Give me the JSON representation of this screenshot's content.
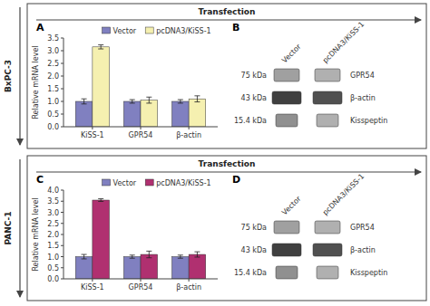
{
  "chart_data": [
    {
      "type": "bar",
      "title": "A",
      "subtitle": "BxPC-3",
      "annotations": [
        "Transfection"
      ],
      "categories": [
        "KiSS-1",
        "GPR54",
        "β-actin"
      ],
      "series": [
        {
          "name": "Vector",
          "color": "#8080c0",
          "values": [
            1.0,
            1.0,
            1.0
          ],
          "errors": [
            0.1,
            0.07,
            0.07
          ]
        },
        {
          "name": "pcDNA3/KiSS-1",
          "color": "#f5f0b0",
          "values": [
            3.15,
            1.05,
            1.1
          ],
          "errors": [
            0.08,
            0.12,
            0.12
          ]
        }
      ],
      "ylabel": "Relative mRNA level",
      "ylim": [
        0,
        3.5
      ],
      "yticks": [
        {
          "value": 0,
          "label": "0.0"
        },
        0.5,
        {
          "value": 1.0,
          "label": "1.0"
        },
        1.5,
        {
          "value": 2.0,
          "label": "2.0"
        },
        2.5,
        {
          "value": 3.0,
          "label": "3.0"
        },
        3.5
      ],
      "legend": "upper right",
      "grid": false
    },
    {
      "type": "blot",
      "title": "B",
      "categories": [
        "Vector",
        "pcDNA3/KiSS-1"
      ],
      "rows": [
        "GPR54",
        "β-actin",
        "Kisspeptin"
      ],
      "annotations": [
        "75 kDa",
        "43 kDa",
        "15.4 kDa"
      ]
    },
    {
      "type": "bar",
      "title": "C",
      "subtitle": "PANC-1",
      "annotations": [
        "Transfection"
      ],
      "categories": [
        "KiSS-1",
        "GPR54",
        "β-actin"
      ],
      "series": [
        {
          "name": "Vector",
          "color": "#8080c0",
          "values": [
            1.0,
            1.0,
            1.0
          ],
          "errors": [
            0.1,
            0.07,
            0.07
          ]
        },
        {
          "name": "pcDNA3/KiSS-1",
          "color": "#b03070",
          "values": [
            3.55,
            1.1,
            1.1
          ],
          "errors": [
            0.06,
            0.15,
            0.12
          ]
        }
      ],
      "ylabel": "Relative mRNA level",
      "ylim": [
        0,
        4.0
      ],
      "yticks": [
        {
          "value": 0,
          "label": "0.0"
        },
        0.5,
        {
          "value": 1.0,
          "label": "1.0"
        },
        1.5,
        {
          "value": 2.0,
          "label": "2.0"
        },
        2.5,
        {
          "value": 3.0,
          "label": "3.0"
        },
        3.5,
        {
          "value": 4.0,
          "label": "4.0"
        }
      ],
      "legend": "upper right",
      "grid": false
    },
    {
      "type": "blot",
      "title": "D",
      "categories": [
        "Vector",
        "pcDNA3/KiSS-1"
      ],
      "rows": [
        "GPR54",
        "β-actin",
        "Kisspeptin"
      ],
      "annotations": [
        "75 kDa",
        "43 kDa",
        "15.4 kDa"
      ]
    }
  ]
}
